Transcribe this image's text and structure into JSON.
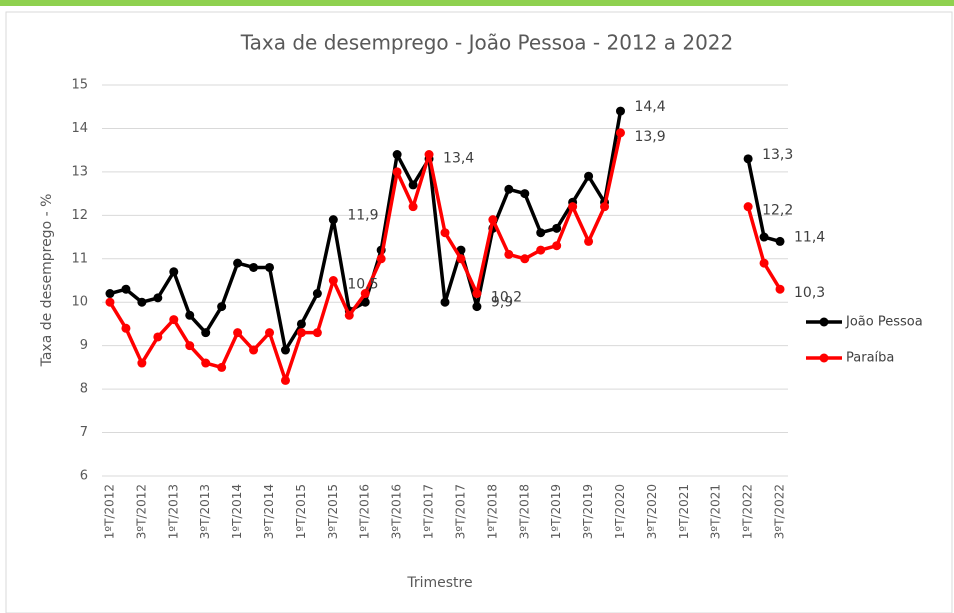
{
  "chart_data": {
    "type": "line",
    "title": "Taxa de desemprego - João Pessoa - 2012 a 2022",
    "x_label": "Trimestre",
    "y_label": "Taxa de desemprego - %",
    "categories": [
      "1ºT/2012",
      null,
      "3ºT/2012",
      null,
      "1ºT/2013",
      null,
      "3ºT/2013",
      null,
      "1ºT/2014",
      null,
      "3ºT/2014",
      null,
      "1ºT/2015",
      null,
      "3ºT/2015",
      null,
      "1ºT/2016",
      null,
      "3ºT/2016",
      null,
      "1ºT/2017",
      null,
      "3ºT/2017",
      null,
      "1ºT/2018",
      null,
      "3ºT/2018",
      null,
      "1ºT/2019",
      null,
      "3ºT/2019",
      null,
      "1ºT/2020",
      null,
      "3ºT/2020",
      null,
      "1ºT/2021",
      null,
      "3ºT/2021",
      null,
      "1ºT/2022",
      null,
      "3ºT/2022"
    ],
    "series": [
      {
        "name": "João Pessoa",
        "color": "#000000",
        "values": [
          10.2,
          10.3,
          10.0,
          10.1,
          10.7,
          9.7,
          9.3,
          9.9,
          10.9,
          10.8,
          10.8,
          8.9,
          9.5,
          10.2,
          11.9,
          9.8,
          10.0,
          11.2,
          13.4,
          12.7,
          13.3,
          10.0,
          11.2,
          9.9,
          11.7,
          12.6,
          12.5,
          11.6,
          11.7,
          12.3,
          12.9,
          12.3,
          14.4,
          null,
          null,
          null,
          null,
          null,
          null,
          null,
          13.3,
          11.5,
          11.4
        ],
        "value_labels": [
          null,
          null,
          null,
          null,
          null,
          null,
          null,
          null,
          null,
          null,
          null,
          null,
          null,
          null,
          "11,9",
          null,
          null,
          null,
          null,
          null,
          null,
          null,
          null,
          "9,9",
          null,
          null,
          null,
          null,
          null,
          null,
          null,
          null,
          "14,4",
          null,
          null,
          null,
          null,
          null,
          null,
          null,
          "13,3",
          null,
          "11,4"
        ]
      },
      {
        "name": "Paraíba",
        "color": "#ff0000",
        "values": [
          10.0,
          9.4,
          8.6,
          9.2,
          9.6,
          9.0,
          8.6,
          8.5,
          9.3,
          8.9,
          9.3,
          8.2,
          9.3,
          9.3,
          10.5,
          9.7,
          10.2,
          11.0,
          13.0,
          12.2,
          13.4,
          11.6,
          11.0,
          10.2,
          11.9,
          11.1,
          11.0,
          11.2,
          11.3,
          12.2,
          11.4,
          12.2,
          13.9,
          null,
          null,
          null,
          null,
          null,
          null,
          null,
          12.2,
          10.9,
          10.3
        ],
        "value_labels": [
          null,
          null,
          null,
          null,
          null,
          null,
          null,
          null,
          null,
          null,
          null,
          null,
          null,
          null,
          "10,5",
          null,
          null,
          null,
          null,
          null,
          "13,4",
          null,
          null,
          "10,2",
          null,
          null,
          null,
          null,
          null,
          null,
          null,
          null,
          "13,9",
          null,
          null,
          null,
          null,
          null,
          null,
          null,
          "12,2",
          null,
          "10,3"
        ]
      }
    ],
    "ylim": [
      6,
      15
    ],
    "yticks": [
      6,
      7,
      8,
      9,
      10,
      11,
      12,
      13,
      14,
      15
    ],
    "legend": "right"
  }
}
